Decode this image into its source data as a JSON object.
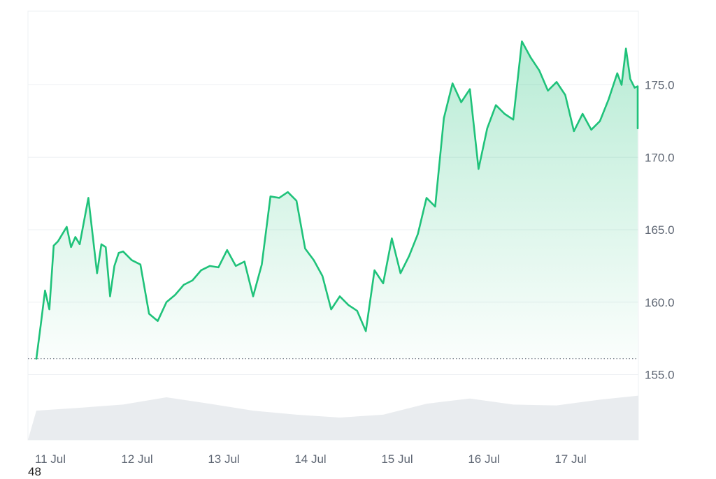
{
  "colors": {
    "line": "#1fc27a",
    "area_top": "#1fc27a",
    "volume": "#e9ecef",
    "grid": "#edf0f3",
    "baseline": "#6b7280"
  },
  "footer_text": "48",
  "chart_data": {
    "type": "area",
    "title": "",
    "xlabel": "",
    "ylabel": "",
    "x_ticks": [
      "11 Jul",
      "12 Jul",
      "13 Jul",
      "14 Jul",
      "15 Jul",
      "16 Jul",
      "17 Jul"
    ],
    "y_ticks": [
      "155.0",
      "160.0",
      "165.0",
      "170.0",
      "175.0"
    ],
    "ylim": [
      155.0,
      180.0
    ],
    "baseline_value": 156.1,
    "grid": true,
    "price": {
      "x_days": [
        0.0,
        0.05,
        0.1,
        0.15,
        0.2,
        0.25,
        0.3,
        0.35,
        0.4,
        0.45,
        0.5,
        0.6,
        0.7,
        0.75,
        0.8,
        0.85,
        0.9,
        0.95,
        1.0,
        1.1,
        1.2,
        1.3,
        1.4,
        1.5,
        1.6,
        1.7,
        1.8,
        1.9,
        2.0,
        2.1,
        2.2,
        2.3,
        2.4,
        2.5,
        2.6,
        2.7,
        2.8,
        2.9,
        3.0,
        3.1,
        3.2,
        3.3,
        3.4,
        3.5,
        3.6,
        3.7,
        3.8,
        3.9,
        4.0,
        4.1,
        4.2,
        4.3,
        4.4,
        4.5,
        4.6,
        4.7,
        4.8,
        4.9,
        5.0,
        5.1,
        5.2,
        5.3,
        5.4,
        5.5,
        5.6,
        5.7,
        5.8,
        5.9,
        6.0,
        6.1,
        6.2,
        6.3,
        6.4,
        6.5,
        6.6,
        6.7,
        6.75,
        6.8,
        6.85,
        6.9,
        6.95,
        7.0,
        7.05
      ],
      "values": [
        156.1,
        158.4,
        160.8,
        159.5,
        163.9,
        164.2,
        164.7,
        165.2,
        163.8,
        164.5,
        164.0,
        167.2,
        162.0,
        164.0,
        163.8,
        160.4,
        162.5,
        163.4,
        163.5,
        162.9,
        162.6,
        159.2,
        158.7,
        160.0,
        160.5,
        161.2,
        161.5,
        162.2,
        162.5,
        162.4,
        163.6,
        162.5,
        162.8,
        160.4,
        162.6,
        167.3,
        167.2,
        167.6,
        167.0,
        163.7,
        162.9,
        161.8,
        159.5,
        160.4,
        159.8,
        159.4,
        158.0,
        162.2,
        161.3,
        164.4,
        162.0,
        163.2,
        164.7,
        167.2,
        166.6,
        172.7,
        175.1,
        173.8,
        174.7,
        169.2,
        172.0,
        173.6,
        173.0,
        172.6,
        178.0,
        176.9,
        176.0,
        174.6,
        175.2,
        174.3,
        171.8,
        173.0,
        171.9,
        172.5,
        174.0,
        175.8,
        175.0,
        177.5,
        175.4,
        174.8,
        174.9,
        173.8,
        172.0
      ]
    },
    "volume": {
      "x_days": [
        0.0,
        0.5,
        1.0,
        1.5,
        2.0,
        2.5,
        3.0,
        3.5,
        4.0,
        4.5,
        5.0,
        5.5,
        6.0,
        6.5,
        7.0,
        7.05
      ],
      "values": [
        0.55,
        0.62,
        0.7,
        0.88,
        0.72,
        0.55,
        0.45,
        0.38,
        0.45,
        0.72,
        0.85,
        0.7,
        0.68,
        0.82,
        0.92,
        0.88
      ]
    }
  }
}
